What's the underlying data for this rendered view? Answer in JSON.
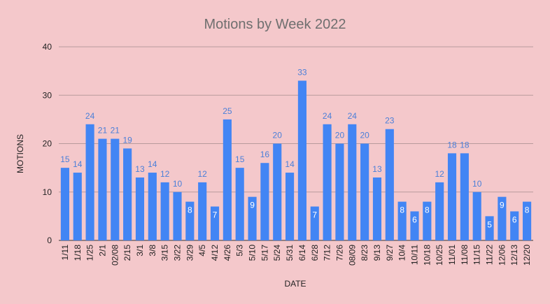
{
  "chart_data": {
    "type": "bar",
    "title": "Motions by Week 2022",
    "xlabel": "DATE",
    "ylabel": "MOTIONS",
    "ylim": [
      0,
      40
    ],
    "yticks": [
      0,
      10,
      20,
      30,
      40
    ],
    "grid": true,
    "legend": "none",
    "bar_color": "#4285f4",
    "label_color_outside": "#4a7fd9",
    "label_color_inside": "#ffffff",
    "background": "#f4c8cb",
    "categories": [
      "1/11",
      "1/18",
      "1/25",
      "2/1",
      "02/08",
      "2/15",
      "3/1",
      "3/8",
      "3/15",
      "3/22",
      "3/29",
      "4/5",
      "4/12",
      "4/26",
      "5/3",
      "5/10",
      "5/17",
      "5/24",
      "5/31",
      "6/14",
      "6/28",
      "7/12",
      "7/26",
      "08/09",
      "8/23",
      "9/13",
      "9/27",
      "10/4",
      "10/11",
      "10/18",
      "10/25",
      "11/01",
      "11/08",
      "11/15",
      "11/22",
      "12/06",
      "12/13",
      "12/20"
    ],
    "values": [
      15,
      14,
      24,
      21,
      21,
      19,
      13,
      14,
      12,
      10,
      8,
      12,
      7,
      25,
      15,
      9,
      16,
      20,
      14,
      33,
      7,
      24,
      20,
      24,
      20,
      13,
      23,
      8,
      6,
      8,
      12,
      18,
      18,
      10,
      5,
      9,
      6,
      8
    ]
  }
}
